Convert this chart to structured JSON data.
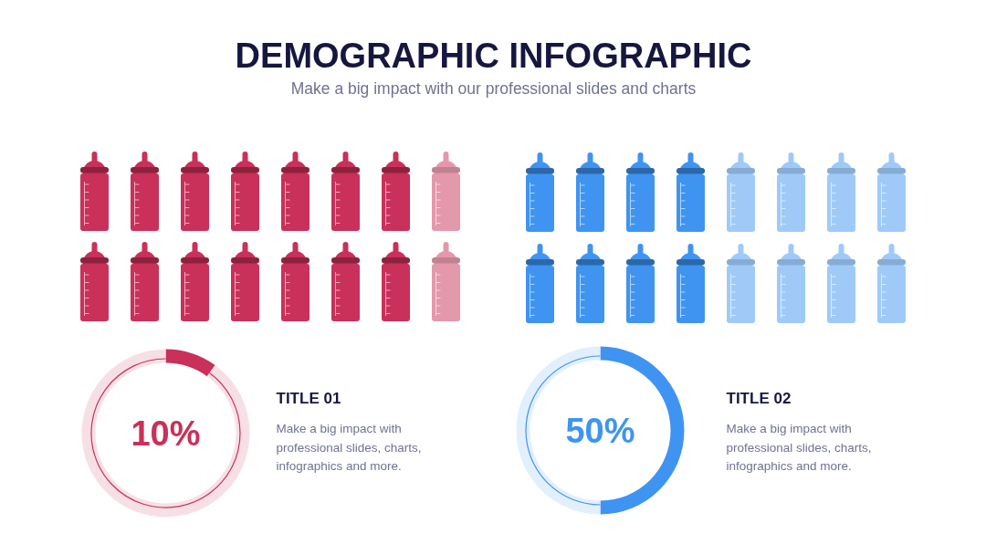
{
  "chart_data": [
    {
      "type": "other",
      "title": "DEMOGRAPHIC INFOGRAPHIC",
      "subtitle": "Make a big impact with our professional slides and charts"
    },
    {
      "type": "donut",
      "title": "TITLE 01",
      "categories": [
        null,
        null
      ],
      "values": [
        10,
        90
      ],
      "colors": [
        "#c9305a",
        "#f6e0e6"
      ],
      "value_labels": [
        "10%",
        null
      ],
      "annotations": [
        "Make a big impact with professional slides, charts, infographics and more."
      ]
    },
    {
      "type": "donut",
      "title": "TITLE 02",
      "categories": [
        null,
        null
      ],
      "values": [
        50,
        50
      ],
      "colors": [
        "#3f94f1",
        "#e2effd"
      ],
      "value_labels": [
        "50%",
        null
      ],
      "annotations": [
        "Make a big impact with professional slides, charts, infographics and more."
      ]
    }
  ]
}
